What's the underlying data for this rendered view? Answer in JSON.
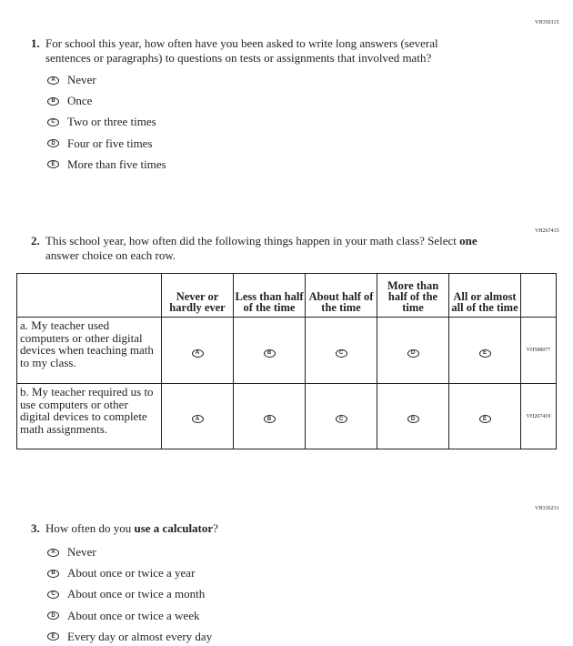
{
  "q1": {
    "code": "VH350115",
    "number": "1.",
    "text": "For school this year, how often have you been asked to write long answers (several sentences or paragraphs) to questions on tests or assignments that involved math?",
    "options": [
      {
        "letter": "A",
        "label": "Never"
      },
      {
        "letter": "B",
        "label": "Once"
      },
      {
        "letter": "C",
        "label": "Two or three times"
      },
      {
        "letter": "D",
        "label": "Four or five times"
      },
      {
        "letter": "E",
        "label": "More than five times"
      }
    ]
  },
  "q2": {
    "code": "VH267415",
    "number": "2.",
    "text_pre": "This school year, how often did the following things happen in your math class? Select ",
    "text_bold": "one",
    "text_post": " answer choice on each row.",
    "columns": [
      "Never or hardly ever",
      "Less than half of the time",
      "About half of the time",
      "More than half of the time",
      "All or almost all of the time"
    ],
    "letters": [
      "A",
      "B",
      "C",
      "D",
      "E"
    ],
    "rows": [
      {
        "label": "a. My teacher used computers or other digital devices when teaching math to my class.",
        "code": "VH588077"
      },
      {
        "label": "b. My teacher required us to use computers or other digital devices to complete math assignments.",
        "code": "VH267419"
      }
    ]
  },
  "q3": {
    "code": "VH336231",
    "number": "3.",
    "text_pre": "How often do you ",
    "text_bold": "use a calculator",
    "text_post": "?",
    "options": [
      {
        "letter": "A",
        "label": "Never"
      },
      {
        "letter": "B",
        "label": "About once or twice a year"
      },
      {
        "letter": "C",
        "label": "About once or twice a month"
      },
      {
        "letter": "D",
        "label": "About once or twice a week"
      },
      {
        "letter": "E",
        "label": "Every day or almost every day"
      }
    ]
  }
}
